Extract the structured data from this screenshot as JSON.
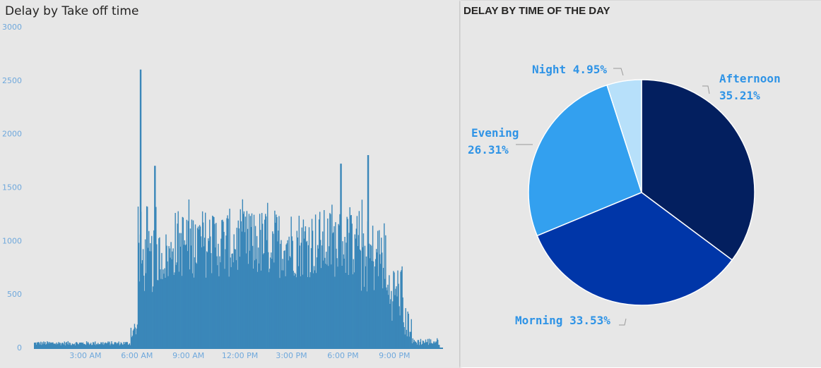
{
  "colors": {
    "bar": "#3a87b9",
    "afternoon": "#031f5f",
    "morning": "#0036a8",
    "evening": "#33a0ef",
    "night": "#b7e0fa",
    "label": "#2e93e6",
    "tick": "#6fa8dc"
  },
  "chart_data": [
    {
      "type": "bar",
      "title": "Delay by Take off time",
      "xlabel": "",
      "ylabel": "",
      "ylim": [
        0,
        3000
      ],
      "yticks": [
        "0",
        "500",
        "1000",
        "1500",
        "2000",
        "2500",
        "3000"
      ],
      "xticks": [
        "3:00 AM",
        "6:00 AM",
        "9:00 AM",
        "12:00 PM",
        "3:00 PM",
        "6:00 PM",
        "9:00 PM"
      ],
      "xrange_hours": [
        0,
        24
      ],
      "peaks": [
        {
          "time": "6:10 AM",
          "value": 2600
        },
        {
          "time": "7:00 AM",
          "value": 1700
        },
        {
          "time": "5:50 PM",
          "value": 1720
        },
        {
          "time": "7:25 PM",
          "value": 1800
        }
      ]
    },
    {
      "type": "pie",
      "title": "DELAY BY TIME OF THE DAY",
      "slices": [
        {
          "name": "Afternoon",
          "value": 35.21,
          "label": "35.21%"
        },
        {
          "name": "Morning",
          "value": 33.53,
          "label": "33.53%"
        },
        {
          "name": "Evening",
          "value": 26.31,
          "label": "26.31%"
        },
        {
          "name": "Night",
          "value": 4.95,
          "label": "4.95%"
        }
      ]
    }
  ],
  "pie_labels": {
    "afternoon_name": "Afternoon",
    "afternoon_pct": "35.21%",
    "morning": "Morning 33.53%",
    "evening_name": "Evening",
    "evening_pct": "26.31%",
    "night": "Night 4.95%"
  }
}
